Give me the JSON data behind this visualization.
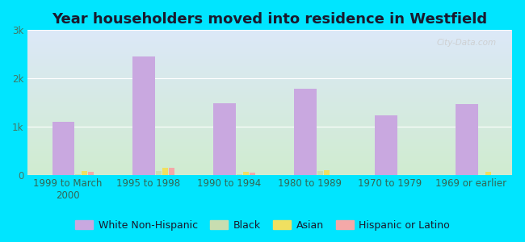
{
  "title": "Year householders moved into residence in Westfield",
  "categories": [
    "1999 to March\n2000",
    "1995 to 1998",
    "1990 to 1994",
    "1980 to 1989",
    "1970 to 1979",
    "1969 or earlier"
  ],
  "white_non_hispanic": [
    1100,
    2450,
    1480,
    1780,
    1230,
    1470
  ],
  "black": [
    20,
    80,
    20,
    80,
    0,
    0
  ],
  "asian": [
    80,
    140,
    70,
    100,
    0,
    60
  ],
  "hispanic": [
    60,
    140,
    50,
    0,
    0,
    0
  ],
  "white_color": "#c9a8e0",
  "black_color": "#c8ddb0",
  "asian_color": "#f0e060",
  "hispanic_color": "#f4a8a8",
  "ylim": [
    0,
    3000
  ],
  "yticks": [
    0,
    1000,
    2000,
    3000
  ],
  "ytick_labels": [
    "0",
    "1k",
    "2k",
    "3k"
  ],
  "background_outer": "#00e5ff",
  "background_inner_top": "#dce8f8",
  "background_inner_bottom": "#d0ecd0",
  "watermark": "City-Data.com",
  "title_fontsize": 13,
  "axis_fontsize": 8.5,
  "legend_fontsize": 9
}
